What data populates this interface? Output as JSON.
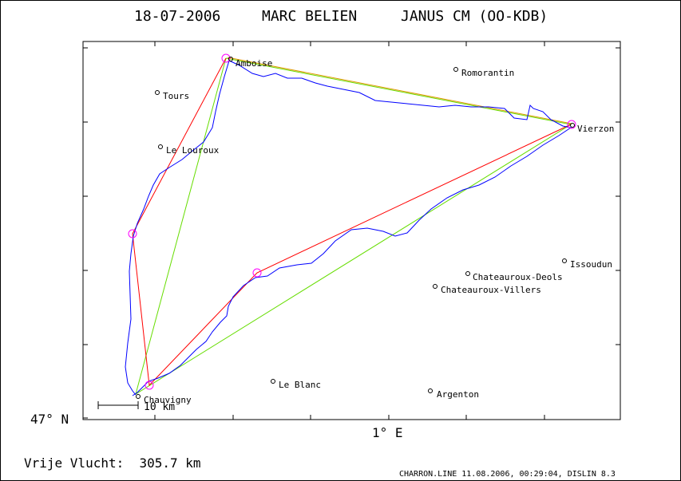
{
  "header": {
    "date": "18-07-2006",
    "pilot": "MARC BELIEN",
    "glider": "JANUS CM (OO-KDB)"
  },
  "axes": {
    "lat_label": "47° N",
    "lon_label": "1° E"
  },
  "scale_bar": "10 km",
  "distance": "Vrije Vlucht:  305.7 km",
  "footer": "CHARRON.LINE 11.08.2006, 00:29:04, DISLIN 8.3",
  "colors": {
    "track": "#0000ff",
    "leg_line": "#ff0000",
    "closing_line": "#66dd00",
    "turnpoint": "#ff00ff",
    "axis": "#000000"
  },
  "towns": [
    {
      "name": "Amboise"
    },
    {
      "name": "Romorantin"
    },
    {
      "name": "Tours"
    },
    {
      "name": "Vierzon"
    },
    {
      "name": "Le Louroux"
    },
    {
      "name": "Issoudun"
    },
    {
      "name": "Chateauroux-Deols"
    },
    {
      "name": "Chateauroux-Villers"
    },
    {
      "name": "Le Blanc"
    },
    {
      "name": "Argenton"
    },
    {
      "name": "Chauvigny"
    }
  ],
  "turnpoints_count": 5
}
